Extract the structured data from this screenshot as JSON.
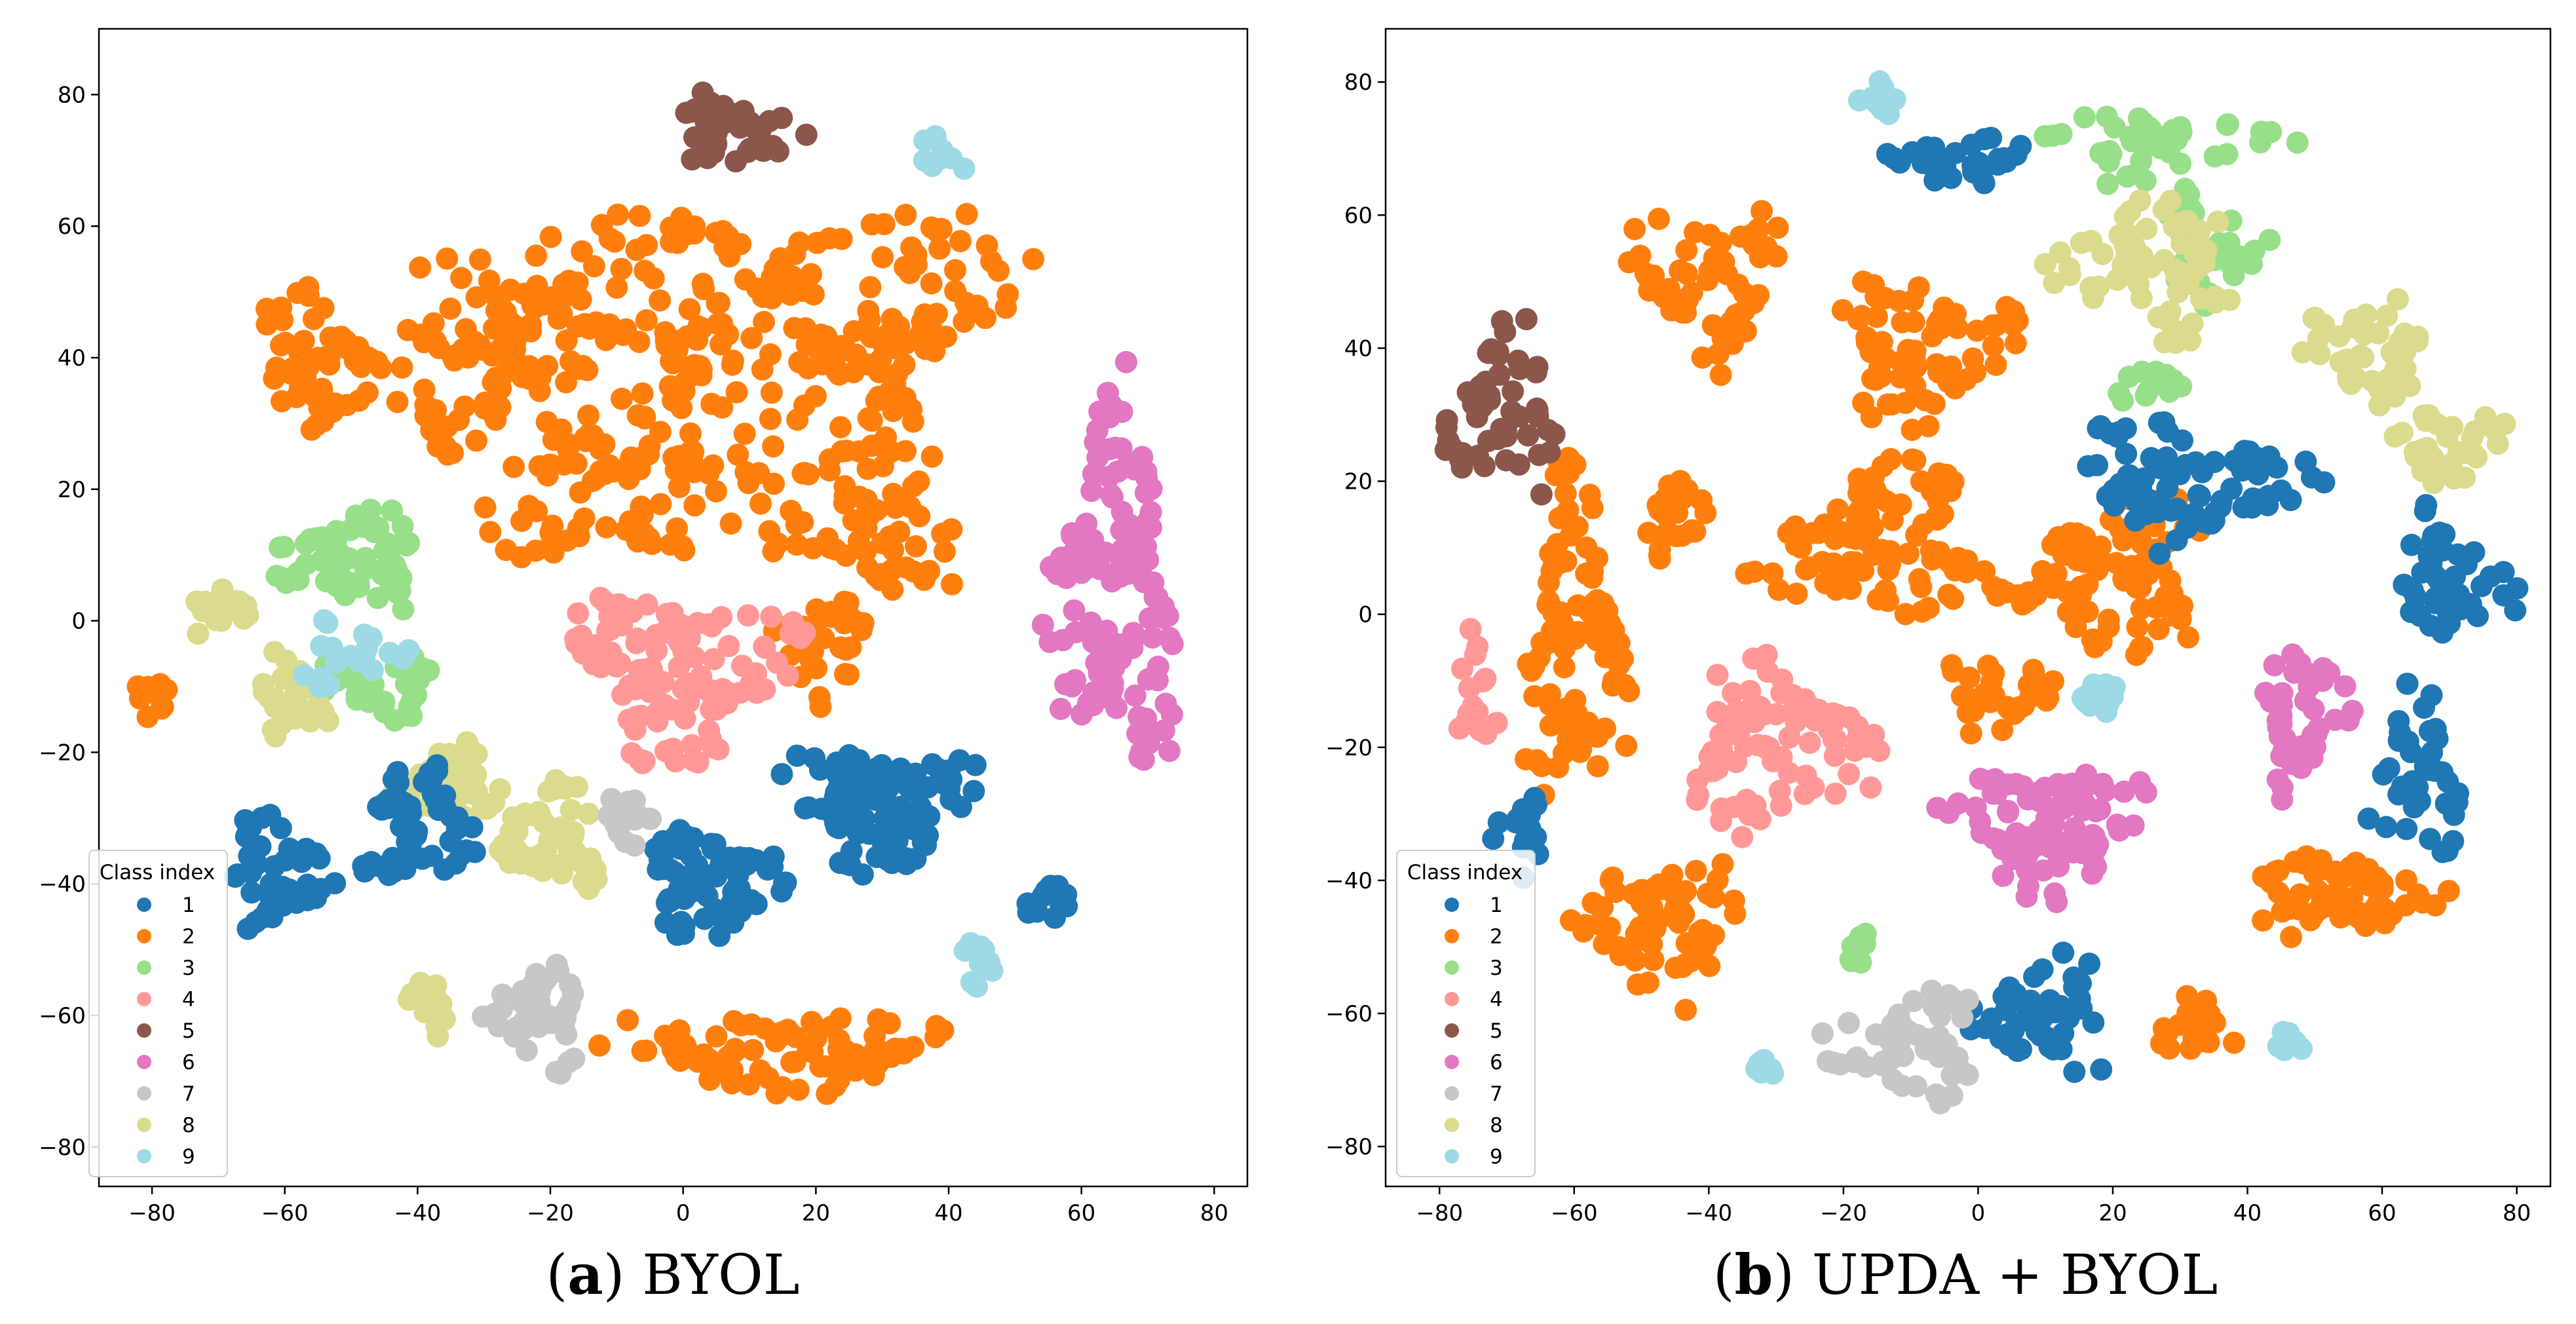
{
  "chart_data": [
    {
      "type": "scatter",
      "caption_letter": "a",
      "caption_text": "BYOL",
      "xlim": [
        -88,
        85
      ],
      "ylim": [
        -86,
        90
      ],
      "xticks": [
        -80,
        -60,
        -40,
        -20,
        0,
        20,
        40,
        60,
        80
      ],
      "yticks": [
        -80,
        -60,
        -40,
        -20,
        0,
        20,
        40,
        60,
        80
      ],
      "grid": false,
      "legend": {
        "title": "Class index",
        "placement": "lower-left",
        "entries": [
          "1",
          "2",
          "3",
          "4",
          "5",
          "6",
          "7",
          "8",
          "9"
        ]
      },
      "class_colors": {
        "1": "#1f77b4",
        "2": "#ff7f0e",
        "3": "#98df8a",
        "4": "#ff9896",
        "5": "#8c564b",
        "6": "#e377c2",
        "7": "#c7c7c7",
        "8": "#dbdb8d",
        "9": "#9edae5"
      },
      "clusters": [
        {
          "class": "2",
          "cx": 15,
          "cy": 45,
          "rx": 42,
          "ry": 26,
          "n": 210
        },
        {
          "class": "2",
          "cx": -28,
          "cy": 42,
          "rx": 22,
          "ry": 18,
          "n": 90
        },
        {
          "class": "2",
          "cx": -55,
          "cy": 38,
          "rx": 14,
          "ry": 14,
          "n": 55
        },
        {
          "class": "2",
          "cx": -12,
          "cy": 22,
          "rx": 22,
          "ry": 18,
          "n": 90
        },
        {
          "class": "2",
          "cx": 28,
          "cy": 18,
          "rx": 18,
          "ry": 18,
          "n": 80
        },
        {
          "class": "2",
          "cx": 20,
          "cy": -5,
          "rx": 10,
          "ry": 10,
          "n": 35
        },
        {
          "class": "2",
          "cx": 15,
          "cy": -65,
          "rx": 34,
          "ry": 8,
          "n": 90
        },
        {
          "class": "2",
          "cx": -80,
          "cy": -12,
          "rx": 3,
          "ry": 5,
          "n": 10
        },
        {
          "class": "5",
          "cx": 8,
          "cy": 74,
          "rx": 12,
          "ry": 7,
          "n": 40
        },
        {
          "class": "9",
          "cx": 38,
          "cy": 70,
          "rx": 5,
          "ry": 4,
          "n": 10
        },
        {
          "class": "6",
          "cx": 65,
          "cy": 5,
          "rx": 12,
          "ry": 35,
          "n": 150
        },
        {
          "class": "3",
          "cx": -50,
          "cy": 9,
          "rx": 14,
          "ry": 9,
          "n": 65
        },
        {
          "class": "3",
          "cx": -45,
          "cy": -10,
          "rx": 12,
          "ry": 6,
          "n": 35
        },
        {
          "class": "4",
          "cx": 0,
          "cy": -8,
          "rx": 20,
          "ry": 16,
          "n": 120
        },
        {
          "class": "8",
          "cx": -70,
          "cy": 2,
          "rx": 6,
          "ry": 5,
          "n": 20
        },
        {
          "class": "8",
          "cx": -60,
          "cy": -12,
          "rx": 8,
          "ry": 8,
          "n": 30
        },
        {
          "class": "8",
          "cx": -35,
          "cy": -25,
          "rx": 10,
          "ry": 8,
          "n": 50
        },
        {
          "class": "8",
          "cx": -20,
          "cy": -33,
          "rx": 10,
          "ry": 10,
          "n": 50
        },
        {
          "class": "8",
          "cx": -38,
          "cy": -58,
          "rx": 4,
          "ry": 6,
          "n": 15
        },
        {
          "class": "1",
          "cx": 30,
          "cy": -28,
          "rx": 18,
          "ry": 12,
          "n": 110
        },
        {
          "class": "1",
          "cx": 5,
          "cy": -40,
          "rx": 14,
          "ry": 10,
          "n": 80
        },
        {
          "class": "1",
          "cx": -62,
          "cy": -38,
          "rx": 10,
          "ry": 12,
          "n": 50
        },
        {
          "class": "1",
          "cx": -40,
          "cy": -30,
          "rx": 10,
          "ry": 14,
          "n": 60
        },
        {
          "class": "1",
          "cx": 55,
          "cy": -43,
          "rx": 5,
          "ry": 3,
          "n": 12
        },
        {
          "class": "7",
          "cx": -22,
          "cy": -60,
          "rx": 10,
          "ry": 10,
          "n": 50
        },
        {
          "class": "7",
          "cx": -8,
          "cy": -30,
          "rx": 5,
          "ry": 5,
          "n": 15
        },
        {
          "class": "9",
          "cx": 45,
          "cy": -52,
          "rx": 4,
          "ry": 4,
          "n": 10
        },
        {
          "class": "9",
          "cx": -50,
          "cy": -5,
          "rx": 10,
          "ry": 6,
          "n": 20
        }
      ]
    },
    {
      "type": "scatter",
      "caption_letter": "b",
      "caption_text": "UPDA + BYOL",
      "xlim": [
        -88,
        85
      ],
      "ylim": [
        -86,
        88
      ],
      "xticks": [
        -80,
        -60,
        -40,
        -20,
        0,
        20,
        40,
        60,
        80
      ],
      "yticks": [
        -80,
        -60,
        -40,
        -20,
        0,
        20,
        40,
        60,
        80
      ],
      "grid": false,
      "legend": {
        "title": "Class index",
        "placement": "lower-left",
        "entries": [
          "1",
          "2",
          "3",
          "4",
          "5",
          "6",
          "7",
          "8",
          "9"
        ]
      },
      "class_colors": {
        "1": "#1f77b4",
        "2": "#ff7f0e",
        "3": "#98df8a",
        "4": "#ff9896",
        "5": "#8c564b",
        "6": "#e377c2",
        "7": "#c7c7c7",
        "8": "#dbdb8d",
        "9": "#9edae5"
      },
      "clusters": [
        {
          "class": "2",
          "cx": -40,
          "cy": 50,
          "rx": 14,
          "ry": 16,
          "n": 60
        },
        {
          "class": "2",
          "cx": -8,
          "cy": 40,
          "rx": 16,
          "ry": 14,
          "n": 70
        },
        {
          "class": "2",
          "cx": -45,
          "cy": 15,
          "rx": 6,
          "ry": 10,
          "n": 25
        },
        {
          "class": "2",
          "cx": -60,
          "cy": -5,
          "rx": 9,
          "ry": 32,
          "n": 100
        },
        {
          "class": "2",
          "cx": -15,
          "cy": 10,
          "rx": 22,
          "ry": 14,
          "n": 100
        },
        {
          "class": "2",
          "cx": 18,
          "cy": 6,
          "rx": 22,
          "ry": 14,
          "n": 100
        },
        {
          "class": "2",
          "cx": -47,
          "cy": -47,
          "rx": 16,
          "ry": 14,
          "n": 65
        },
        {
          "class": "2",
          "cx": 3,
          "cy": -12,
          "rx": 10,
          "ry": 8,
          "n": 30
        },
        {
          "class": "2",
          "cx": 55,
          "cy": -43,
          "rx": 20,
          "ry": 8,
          "n": 60
        },
        {
          "class": "2",
          "cx": 33,
          "cy": -62,
          "rx": 8,
          "ry": 6,
          "n": 20
        },
        {
          "class": "5",
          "cx": -70,
          "cy": 30,
          "rx": 10,
          "ry": 16,
          "n": 50
        },
        {
          "class": "9",
          "cx": -14,
          "cy": 78,
          "rx": 5,
          "ry": 4,
          "n": 10
        },
        {
          "class": "1",
          "cx": -3,
          "cy": 68,
          "rx": 12,
          "ry": 5,
          "n": 30
        },
        {
          "class": "3",
          "cx": 28,
          "cy": 70,
          "rx": 22,
          "ry": 7,
          "n": 45
        },
        {
          "class": "3",
          "cx": 35,
          "cy": 55,
          "rx": 10,
          "ry": 10,
          "n": 30
        },
        {
          "class": "3",
          "cx": 25,
          "cy": 35,
          "rx": 6,
          "ry": 4,
          "n": 12
        },
        {
          "class": "3",
          "cx": -18,
          "cy": -50,
          "rx": 3,
          "ry": 4,
          "n": 8
        },
        {
          "class": "8",
          "cx": 25,
          "cy": 52,
          "rx": 18,
          "ry": 14,
          "n": 70
        },
        {
          "class": "8",
          "cx": 58,
          "cy": 40,
          "rx": 12,
          "ry": 10,
          "n": 45
        },
        {
          "class": "8",
          "cx": 70,
          "cy": 25,
          "rx": 10,
          "ry": 8,
          "n": 30
        },
        {
          "class": "1",
          "cx": 30,
          "cy": 20,
          "rx": 22,
          "ry": 12,
          "n": 80
        },
        {
          "class": "1",
          "cx": 70,
          "cy": 5,
          "rx": 12,
          "ry": 12,
          "n": 45
        },
        {
          "class": "1",
          "cx": 65,
          "cy": -25,
          "rx": 8,
          "ry": 16,
          "n": 40
        },
        {
          "class": "1",
          "cx": 10,
          "cy": -60,
          "rx": 12,
          "ry": 12,
          "n": 50
        },
        {
          "class": "1",
          "cx": -68,
          "cy": -33,
          "rx": 5,
          "ry": 8,
          "n": 20
        },
        {
          "class": "6",
          "cx": 10,
          "cy": -32,
          "rx": 18,
          "ry": 12,
          "n": 90
        },
        {
          "class": "6",
          "cx": 48,
          "cy": -15,
          "rx": 8,
          "ry": 14,
          "n": 45
        },
        {
          "class": "4",
          "cx": -30,
          "cy": -20,
          "rx": 18,
          "ry": 16,
          "n": 90
        },
        {
          "class": "4",
          "cx": -75,
          "cy": -12,
          "rx": 4,
          "ry": 10,
          "n": 20
        },
        {
          "class": "9",
          "cx": 18,
          "cy": -12,
          "rx": 5,
          "ry": 4,
          "n": 12
        },
        {
          "class": "7",
          "cx": -10,
          "cy": -65,
          "rx": 14,
          "ry": 10,
          "n": 50
        },
        {
          "class": "9",
          "cx": -32,
          "cy": -68,
          "rx": 4,
          "ry": 2,
          "n": 8
        },
        {
          "class": "9",
          "cx": 47,
          "cy": -65,
          "rx": 4,
          "ry": 3,
          "n": 8
        }
      ]
    }
  ]
}
